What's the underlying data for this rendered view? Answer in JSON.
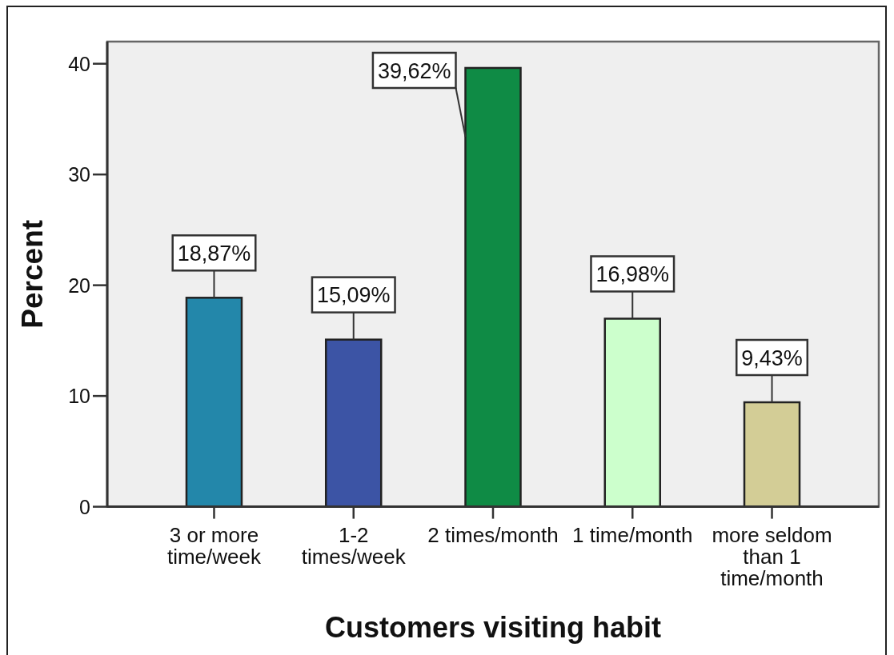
{
  "chart_data": {
    "type": "bar",
    "xlabel": "Customers visiting habit",
    "ylabel": "Percent",
    "categories": [
      "3 or more\ntime/week",
      "1-2\ntimes/week",
      "2 times/month",
      "1 time/month",
      "more seldom\nthan 1\ntime/month"
    ],
    "values": [
      18.87,
      15.09,
      39.62,
      16.98,
      9.43
    ],
    "colors": [
      "#2387aa",
      "#3c54a5",
      "#0f8b45",
      "#ccffcc",
      "#d3cd96"
    ],
    "value_labels": [
      "18,87%",
      "15,09%",
      "39,62%",
      "16,98%",
      "9,43%"
    ],
    "ylim": [
      0,
      42
    ],
    "yticks": [
      0,
      10,
      20,
      30,
      40
    ]
  }
}
